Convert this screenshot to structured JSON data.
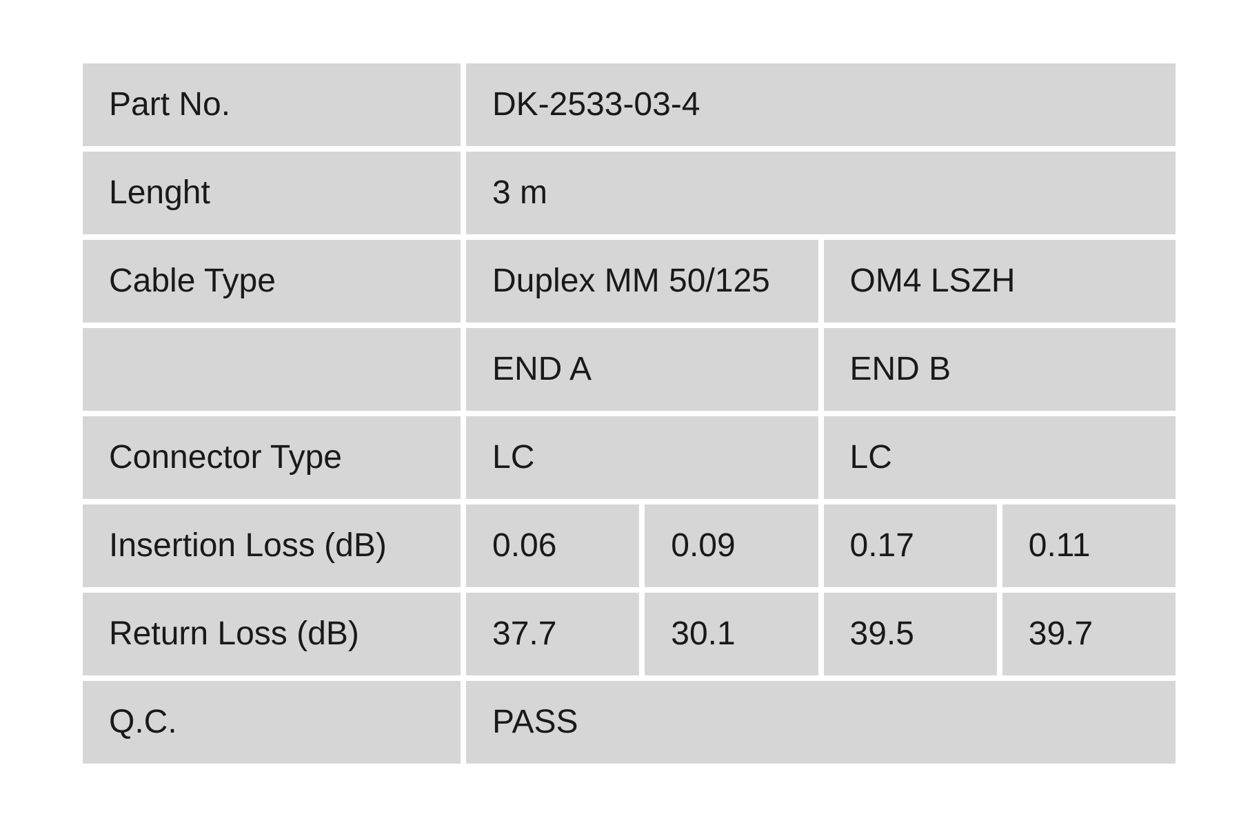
{
  "colors": {
    "page_bg": "#ffffff",
    "cell_bg": "#d6d6d6",
    "text": "#191919"
  },
  "table": {
    "rows": [
      {
        "label": "Part No.",
        "cells": [
          {
            "text": "DK-2533-03-4"
          }
        ]
      },
      {
        "label": "Lenght",
        "cells": [
          {
            "text": "3 m"
          }
        ]
      },
      {
        "label": "Cable Type",
        "cells": [
          {
            "text": "Duplex MM 50/125"
          },
          {
            "text": "OM4 LSZH"
          }
        ]
      },
      {
        "label": "",
        "cells": [
          {
            "text": "END A"
          },
          {
            "text": "END B"
          }
        ]
      },
      {
        "label": "Connector Type",
        "cells": [
          {
            "text": "LC"
          },
          {
            "text": "LC"
          }
        ]
      },
      {
        "label": "Insertion Loss (dB)",
        "cells": [
          {
            "text": "0.06"
          },
          {
            "text": "0.09"
          },
          {
            "text": "0.17"
          },
          {
            "text": "0.11"
          }
        ]
      },
      {
        "label": "Return Loss (dB)",
        "cells": [
          {
            "text": "37.7"
          },
          {
            "text": "30.1"
          },
          {
            "text": "39.5"
          },
          {
            "text": "39.7"
          }
        ]
      },
      {
        "label": "Q.C.",
        "cells": [
          {
            "text": "PASS"
          }
        ]
      }
    ]
  }
}
